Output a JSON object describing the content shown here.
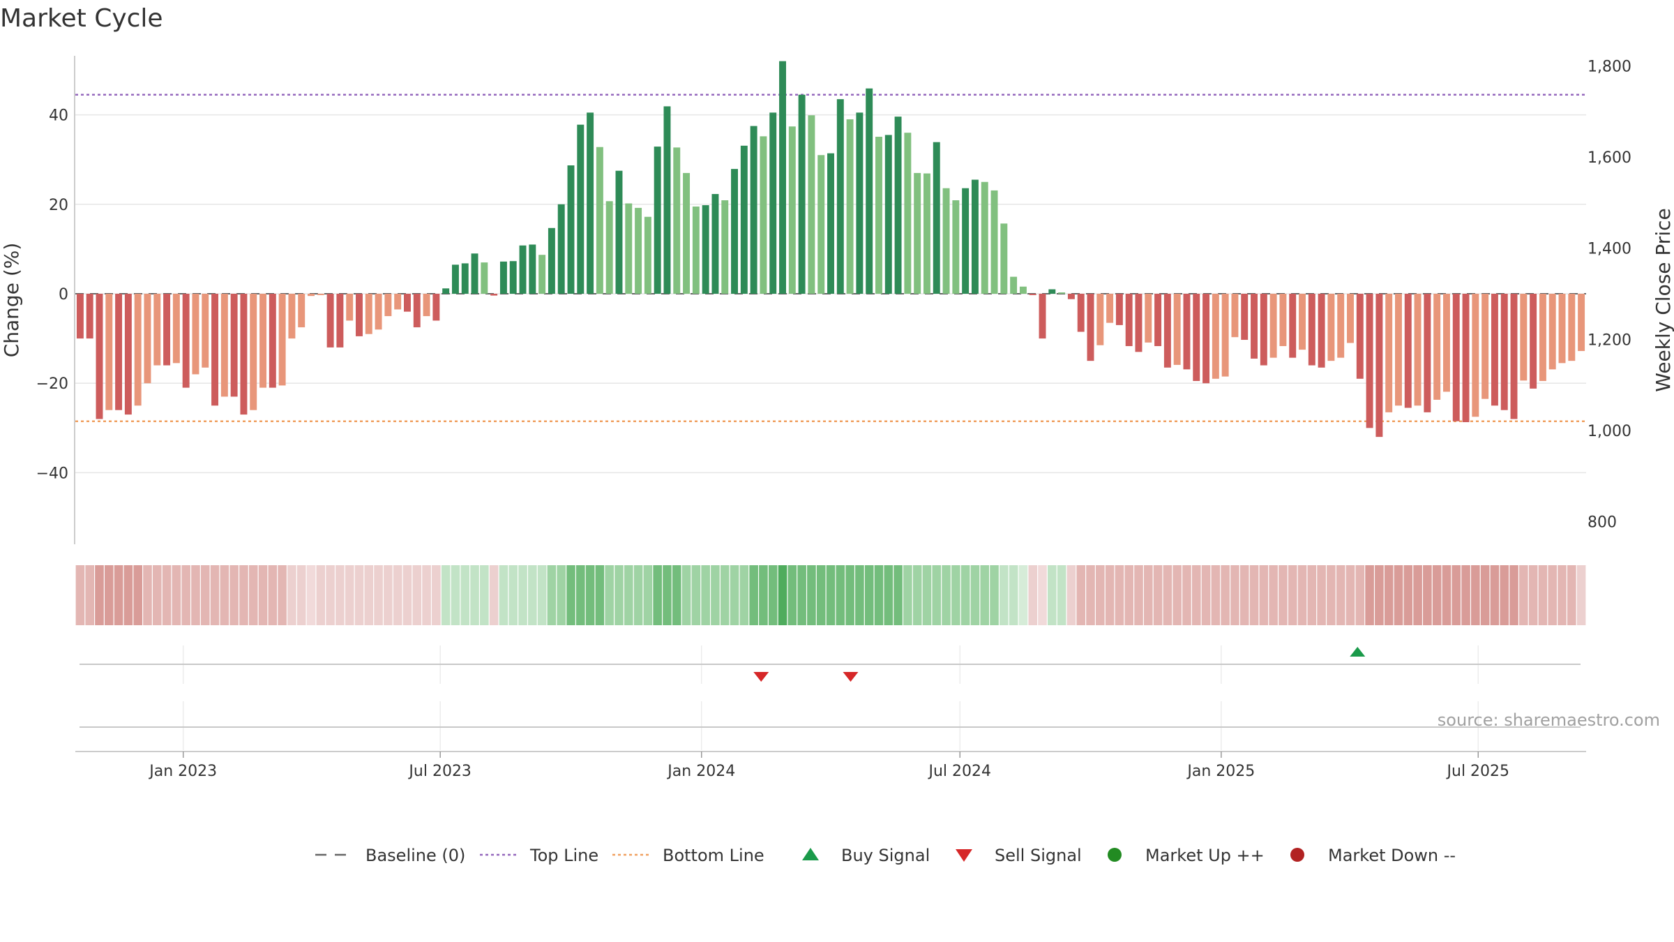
{
  "title": "Market Cycle",
  "source": "source: sharemaestro.com",
  "colors": {
    "up_strong": "#2e8b57",
    "up_light": "#81c07f",
    "down_strong": "#cd5c5c",
    "down_light": "#e8967a",
    "top_line": "#9467bd",
    "bottom_line": "#f0a060",
    "baseline": "#666666",
    "buy": "#1a9a4a",
    "sell": "#d62728",
    "market_up": "#228b22",
    "market_down": "#b22222"
  },
  "legend": [
    {
      "key": "baseline",
      "label": "Baseline (0)",
      "symbol": "dash",
      "color": "#666666"
    },
    {
      "key": "top",
      "label": "Top Line",
      "symbol": "dot",
      "color": "#9467bd"
    },
    {
      "key": "bottom",
      "label": "Bottom Line",
      "symbol": "dot",
      "color": "#f0a060"
    },
    {
      "key": "buy",
      "label": "Buy Signal",
      "symbol": "tri-up",
      "color": "#1a9a4a"
    },
    {
      "key": "sell",
      "label": "Sell Signal",
      "symbol": "tri-down",
      "color": "#d62728"
    },
    {
      "key": "mup",
      "label": "Market Up ++",
      "symbol": "circle",
      "color": "#228b22"
    },
    {
      "key": "mdown",
      "label": "Market Down --",
      "symbol": "circle",
      "color": "#b22222"
    }
  ],
  "chart_data": {
    "type": "bar",
    "ylabel": "Change (%)",
    "ylabel_right": "Weekly Close Price",
    "ylim": [
      -56,
      56
    ],
    "yticks": [
      -40,
      -20,
      0,
      20,
      40
    ],
    "ytick_labels": [
      "−40",
      "−20",
      "0",
      "20",
      "40"
    ],
    "ylim_right": [
      750,
      1850
    ],
    "yticks_right": [
      800,
      1000,
      1200,
      1400,
      1600,
      1800
    ],
    "ytick_labels_right": [
      "800",
      "1,000",
      "1,200",
      "1,400",
      "1,600",
      "1,800"
    ],
    "x_start": "2022-10-17",
    "x_end": "2025-09-15",
    "xticks": [
      {
        "date": "2023-01-01",
        "label": "Jan 2023"
      },
      {
        "date": "2023-07-01",
        "label": "Jul 2023"
      },
      {
        "date": "2024-01-01",
        "label": "Jan 2024"
      },
      {
        "date": "2024-07-01",
        "label": "Jul 2024"
      },
      {
        "date": "2025-01-01",
        "label": "Jan 2025"
      },
      {
        "date": "2025-07-01",
        "label": "Jul 2025"
      }
    ],
    "top_line": 44.5,
    "bottom_line": -28.5,
    "baseline": 0,
    "values": [
      -10,
      -10,
      -28,
      -26,
      -26,
      -27,
      -25,
      -20,
      -16,
      -16,
      -15.5,
      -21,
      -18,
      -16.5,
      -25,
      -23,
      -23,
      -27,
      -26,
      -21,
      -21,
      -20.5,
      -10,
      -7.5,
      -0.5,
      -0.3,
      -12,
      -12,
      -6,
      -9.5,
      -9,
      -8,
      -5,
      -3.5,
      -4,
      -7.5,
      -5,
      -6,
      1.2,
      6.5,
      6.8,
      9,
      7,
      -0.4,
      7.2,
      7.3,
      10.8,
      11,
      8.7,
      14.7,
      20,
      28.7,
      37.8,
      40.5,
      32.8,
      20.7,
      27.5,
      20.2,
      19.2,
      17.2,
      32.9,
      41.9,
      32.7,
      27,
      19.5,
      19.8,
      22.3,
      20.9,
      27.9,
      33.1,
      37.5,
      35.2,
      40.5,
      52,
      37.4,
      44.5,
      39.9,
      31,
      31.4,
      43.5,
      39,
      40.5,
      45.9,
      35.1,
      35.5,
      39.6,
      36,
      27,
      26.9,
      33.9,
      23.6,
      20.9,
      23.6,
      25.5,
      25,
      23.1,
      15.7,
      3.8,
      1.6,
      -0.3,
      -10,
      1,
      0.3,
      -1.2,
      -8.5,
      -15,
      -11.5,
      -6.5,
      -7,
      -11.7,
      -13,
      -10.9,
      -11.7,
      -16.5,
      -15.9,
      -16.9,
      -19.5,
      -20,
      -19,
      -18.5,
      -9.7,
      -10.3,
      -14.5,
      -16,
      -14.3,
      -11.7,
      -14.3,
      -12.5,
      -16,
      -16.5,
      -15,
      -14.3,
      -11,
      -19,
      -30,
      -32,
      -26.5,
      -25,
      -25.5,
      -25,
      -26.5,
      -23.7,
      -21.9,
      -28.5,
      -28.7,
      -27.5,
      -23.5,
      -25,
      -26,
      -28,
      -19.4,
      -21.2,
      -19.5,
      -16.9,
      -15.5,
      -15,
      -12.8
    ],
    "strength": [
      2,
      2,
      3,
      3,
      3,
      3,
      3,
      2,
      2,
      2,
      2,
      2,
      2,
      2,
      2,
      2,
      2,
      2,
      2,
      2,
      2,
      2,
      1,
      1,
      0,
      1,
      1,
      1,
      1,
      1,
      1,
      1,
      1,
      1,
      1,
      1,
      1,
      1,
      1,
      1,
      1,
      1,
      1,
      1,
      1,
      1,
      1,
      1,
      1,
      2,
      2,
      3,
      3,
      3,
      3,
      2,
      2,
      2,
      2,
      2,
      3,
      3,
      3,
      2,
      2,
      2,
      2,
      2,
      2,
      2,
      3,
      3,
      3,
      4,
      3,
      3,
      3,
      3,
      3,
      3,
      3,
      3,
      3,
      3,
      3,
      3,
      2,
      2,
      2,
      2,
      2,
      2,
      2,
      2,
      2,
      2,
      1,
      1,
      0,
      1,
      0,
      1,
      1,
      1,
      2,
      2,
      2,
      2,
      2,
      2,
      2,
      2,
      2,
      2,
      2,
      2,
      2,
      2,
      2,
      2,
      2,
      2,
      2,
      2,
      2,
      2,
      2,
      2,
      2,
      2,
      2,
      2,
      2,
      2,
      3,
      3,
      3,
      3,
      3,
      3,
      3,
      3,
      3,
      3,
      3,
      3,
      3,
      3,
      3,
      3,
      2,
      2,
      2,
      2,
      2,
      2,
      1
    ],
    "buy_signals": [
      "2025-04-07"
    ],
    "sell_signals": [
      "2024-02-12",
      "2024-04-15"
    ]
  }
}
